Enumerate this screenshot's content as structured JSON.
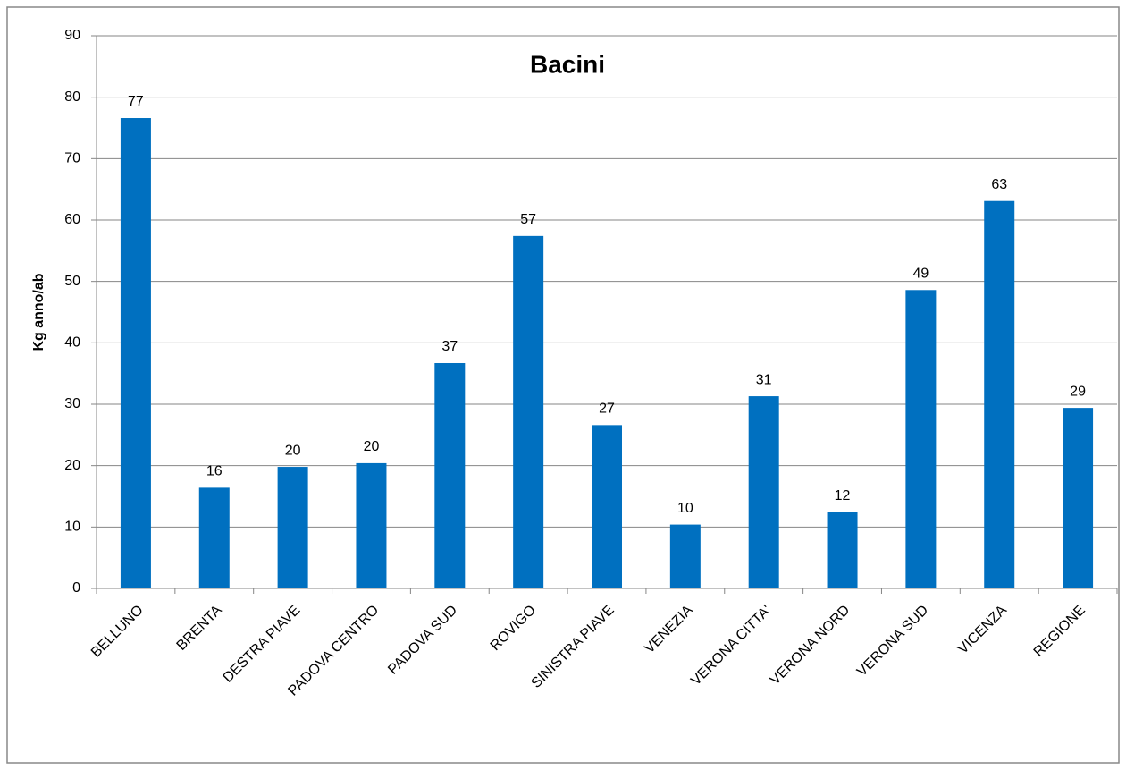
{
  "chart_data": {
    "type": "bar",
    "title": "Bacini",
    "y_label": "Kg anno/ab",
    "categories": [
      "BELLUNO",
      "BRENTA",
      "DESTRA PIAVE",
      "PADOVA CENTRO",
      "PADOVA SUD",
      "ROVIGO",
      "SINISTRA PIAVE",
      "VENEZIA",
      "VERONA CITTA'",
      "VERONA NORD",
      "VERONA SUD",
      "VICENZA",
      "REGIONE"
    ],
    "values": [
      76.6,
      16.4,
      19.8,
      20.4,
      36.7,
      57.4,
      26.6,
      10.4,
      31.3,
      12.4,
      48.6,
      63.1,
      29.4
    ],
    "value_labels": [
      "77",
      "16",
      "20",
      "20",
      "37",
      "57",
      "27",
      "10",
      "31",
      "12",
      "49",
      "63",
      "29"
    ],
    "color": "#0070c0",
    "ylim": [
      0,
      90
    ],
    "yticks": [
      0,
      10,
      20,
      30,
      40,
      50,
      60,
      70,
      80,
      90
    ],
    "grid": true
  }
}
